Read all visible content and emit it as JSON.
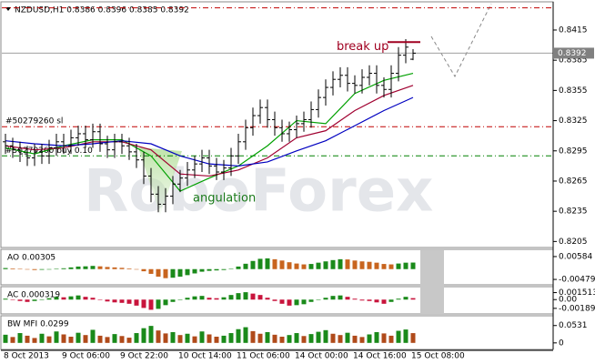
{
  "chart_data": [
    {
      "type": "ohlc",
      "header": "NZDUSD,H1  0.8386 0.8396 0.8385 0.8392",
      "watermark": "RoboForex",
      "categories": [
        "8 Oct 2013",
        null,
        null,
        null,
        null,
        null,
        null,
        null,
        "9 Oct 06:00",
        null,
        null,
        null,
        null,
        null,
        null,
        null,
        "9 Oct 22:00",
        null,
        null,
        null,
        null,
        null,
        null,
        null,
        "10 Oct 14:00",
        null,
        null,
        null,
        null,
        null,
        null,
        null,
        "11 Oct 06:00",
        null,
        null,
        null,
        null,
        null,
        null,
        null,
        "14 Oct 00:00",
        null,
        null,
        null,
        null,
        null,
        null,
        null,
        "14 Oct 16:00",
        null,
        null,
        null,
        null,
        null,
        null,
        null,
        "15 Oct 08:00"
      ],
      "open": [
        0.8304,
        0.83,
        0.8296,
        0.8292,
        0.8288,
        0.8294,
        0.829,
        0.8298,
        0.8304,
        0.83,
        0.8308,
        0.8312,
        0.8306,
        0.8314,
        0.8302,
        0.8296,
        0.8304,
        0.83,
        0.8294,
        0.8286,
        0.827,
        0.8252,
        0.8242,
        0.825,
        0.8262,
        0.8268,
        0.8276,
        0.8282,
        0.8288,
        0.828,
        0.8274,
        0.8278,
        0.829,
        0.8304,
        0.8318,
        0.833,
        0.8338,
        0.8326,
        0.8318,
        0.8312,
        0.8316,
        0.8322,
        0.8326,
        0.8336,
        0.8348,
        0.8358,
        0.8366,
        0.837,
        0.8362,
        0.836,
        0.8368,
        0.8372,
        0.836,
        0.8356,
        0.8372,
        0.839,
        0.8386
      ],
      "high": [
        0.8312,
        0.8308,
        0.8304,
        0.83,
        0.8302,
        0.8302,
        0.8306,
        0.8312,
        0.8312,
        0.8316,
        0.832,
        0.832,
        0.8322,
        0.8322,
        0.831,
        0.8312,
        0.8312,
        0.8308,
        0.8302,
        0.8294,
        0.8278,
        0.826,
        0.8258,
        0.827,
        0.8276,
        0.8284,
        0.829,
        0.8296,
        0.8296,
        0.8288,
        0.8286,
        0.8298,
        0.8312,
        0.8326,
        0.8338,
        0.8346,
        0.8346,
        0.8334,
        0.8326,
        0.8324,
        0.833,
        0.8334,
        0.8344,
        0.8356,
        0.8366,
        0.8374,
        0.8378,
        0.8378,
        0.837,
        0.8376,
        0.838,
        0.838,
        0.8368,
        0.838,
        0.8398,
        0.8406,
        0.8396
      ],
      "low": [
        0.8292,
        0.8288,
        0.8284,
        0.828,
        0.828,
        0.8282,
        0.8282,
        0.829,
        0.8292,
        0.8292,
        0.83,
        0.8298,
        0.8298,
        0.8294,
        0.8288,
        0.8288,
        0.8292,
        0.8286,
        0.8278,
        0.8262,
        0.8244,
        0.8234,
        0.8234,
        0.8242,
        0.8254,
        0.826,
        0.8268,
        0.8274,
        0.8272,
        0.8266,
        0.8266,
        0.827,
        0.8282,
        0.8296,
        0.831,
        0.8322,
        0.8318,
        0.831,
        0.8304,
        0.8304,
        0.8308,
        0.8314,
        0.8318,
        0.8328,
        0.834,
        0.835,
        0.8358,
        0.8354,
        0.8352,
        0.8352,
        0.836,
        0.8352,
        0.8348,
        0.8348,
        0.8364,
        0.8382,
        0.8385
      ],
      "close": [
        0.83,
        0.8296,
        0.8292,
        0.8288,
        0.8294,
        0.829,
        0.8298,
        0.8304,
        0.83,
        0.8308,
        0.8312,
        0.8306,
        0.8314,
        0.8302,
        0.8296,
        0.8304,
        0.83,
        0.8294,
        0.8286,
        0.827,
        0.8252,
        0.8242,
        0.825,
        0.8262,
        0.8268,
        0.8276,
        0.8282,
        0.8288,
        0.828,
        0.8274,
        0.8278,
        0.829,
        0.8304,
        0.8318,
        0.833,
        0.8338,
        0.8326,
        0.8318,
        0.8312,
        0.8316,
        0.8322,
        0.8326,
        0.8336,
        0.8348,
        0.8358,
        0.8366,
        0.837,
        0.8362,
        0.836,
        0.8368,
        0.8372,
        0.836,
        0.8356,
        0.8372,
        0.839,
        0.8398,
        0.8392
      ],
      "bar_color": "#000000",
      "lines": [
        {
          "color": "#00a000",
          "x": [
            0,
            4,
            8,
            12,
            16,
            20,
            24,
            28,
            32,
            36,
            40,
            44,
            48,
            52,
            56
          ],
          "values": [
            0.8298,
            0.8292,
            0.83,
            0.8306,
            0.8306,
            0.829,
            0.8255,
            0.8268,
            0.828,
            0.83,
            0.8325,
            0.8322,
            0.8352,
            0.8365,
            0.8372
          ]
        },
        {
          "color": "#a00030",
          "x": [
            0,
            4,
            8,
            12,
            16,
            20,
            24,
            28,
            32,
            36,
            40,
            44,
            48,
            52,
            56
          ],
          "values": [
            0.83,
            0.8296,
            0.8298,
            0.8304,
            0.8304,
            0.8296,
            0.8272,
            0.827,
            0.8276,
            0.8288,
            0.8308,
            0.8315,
            0.8335,
            0.835,
            0.836
          ]
        },
        {
          "color": "#0000c0",
          "x": [
            0,
            4,
            8,
            12,
            16,
            20,
            24,
            28,
            32,
            36,
            40,
            44,
            48,
            52,
            56
          ],
          "values": [
            0.8305,
            0.8302,
            0.83,
            0.8302,
            0.8305,
            0.8302,
            0.829,
            0.8282,
            0.828,
            0.8284,
            0.8295,
            0.8305,
            0.832,
            0.8335,
            0.8348
          ]
        }
      ],
      "levels": [
        {
          "value": 0.8437,
          "color": "#c00000"
        },
        {
          "name": "#50279260 sl",
          "value": 0.8319,
          "color": "#c00000"
        },
        {
          "name": "#50279260 buy 0.10",
          "value": 0.829,
          "color": "#008000"
        }
      ],
      "break_up": {
        "text": "break up",
        "value": 0.8403,
        "color": "#a00020"
      },
      "angulation": "angulation",
      "current_price": 0.8392,
      "ylim": [
        0.8199,
        0.8443
      ],
      "yticks": [
        0.8205,
        0.8235,
        0.8265,
        0.8295,
        0.8325,
        0.8355,
        0.8385,
        0.8415
      ]
    },
    {
      "type": "bar",
      "label": "AO 0.00305",
      "up_color": "#1a8a1a",
      "down_color": "#c8641e",
      "values": [
        0.0005,
        0.0003,
        0.0001,
        -0.0002,
        -0.0004,
        -0.0003,
        -0.0001,
        0.0002,
        0.0004,
        0.0008,
        0.0012,
        0.0013,
        0.0015,
        0.0013,
        0.001,
        0.0008,
        0.0006,
        0.0003,
        -0.0002,
        -0.001,
        -0.0022,
        -0.0035,
        -0.0042,
        -0.004,
        -0.0035,
        -0.0028,
        -0.002,
        -0.0012,
        -0.0008,
        -0.0006,
        -0.0004,
        0.0002,
        0.0012,
        0.0025,
        0.0038,
        0.0048,
        0.005,
        0.0046,
        0.004,
        0.0032,
        0.0026,
        0.0022,
        0.0024,
        0.003,
        0.0036,
        0.0042,
        0.0046,
        0.0045,
        0.004,
        0.0036,
        0.0034,
        0.003,
        0.0024,
        0.0022,
        0.0026,
        0.003,
        0.00305
      ],
      "ylim": [
        -0.0073,
        0.0092
      ],
      "yticks": [
        0.00584,
        -0.00479
      ]
    },
    {
      "type": "bar",
      "label": "AC 0.000319",
      "up_color": "#1a8a1a",
      "down_color": "#c8143c",
      "values": [
        0.0002,
        0.0,
        -0.0003,
        -0.0005,
        -0.0003,
        0.0,
        0.0003,
        0.0006,
        0.0005,
        0.0007,
        0.0009,
        0.0006,
        0.0004,
        0.0,
        -0.0004,
        -0.0006,
        -0.0007,
        -0.0009,
        -0.0013,
        -0.0018,
        -0.0022,
        -0.002,
        -0.0012,
        -0.0005,
        0.0,
        0.0004,
        0.0007,
        0.0008,
        0.0004,
        0.0003,
        0.0005,
        0.001,
        0.0014,
        0.0016,
        0.0013,
        0.001,
        0.0004,
        -0.0003,
        -0.0009,
        -0.0013,
        -0.0012,
        -0.001,
        -0.0005,
        0.0,
        0.0004,
        0.0008,
        0.0009,
        0.0006,
        0.0002,
        -0.0002,
        -0.0003,
        -0.0006,
        -0.0009,
        -0.0005,
        0.0002,
        0.0006,
        0.000319
      ],
      "ylim": [
        -0.0031,
        0.0028
      ],
      "yticks": [
        0.001513,
        {
          "value": 0,
          "label": "0.00"
        },
        -0.00189
      ]
    },
    {
      "type": "bar",
      "label": "BW MFI 0.0299",
      "up_color": "#1a8a1a",
      "down_color": "#b04a1a",
      "values": [
        0.025,
        0.018,
        0.03,
        0.022,
        0.015,
        0.028,
        0.02,
        0.035,
        0.026,
        0.019,
        0.031,
        0.024,
        0.04,
        0.022,
        0.018,
        0.027,
        0.021,
        0.016,
        0.03,
        0.045,
        0.052,
        0.038,
        0.029,
        0.033,
        0.024,
        0.028,
        0.02,
        0.035,
        0.026,
        0.019,
        0.022,
        0.03,
        0.042,
        0.048,
        0.036,
        0.028,
        0.033,
        0.025,
        0.019,
        0.024,
        0.03,
        0.021,
        0.027,
        0.034,
        0.039,
        0.028,
        0.024,
        0.031,
        0.022,
        0.018,
        0.026,
        0.033,
        0.029,
        0.022,
        0.037,
        0.041,
        0.0299
      ],
      "ylim": [
        -0.02,
        0.083
      ],
      "yticks": [
        0.0531,
        0
      ]
    }
  ]
}
